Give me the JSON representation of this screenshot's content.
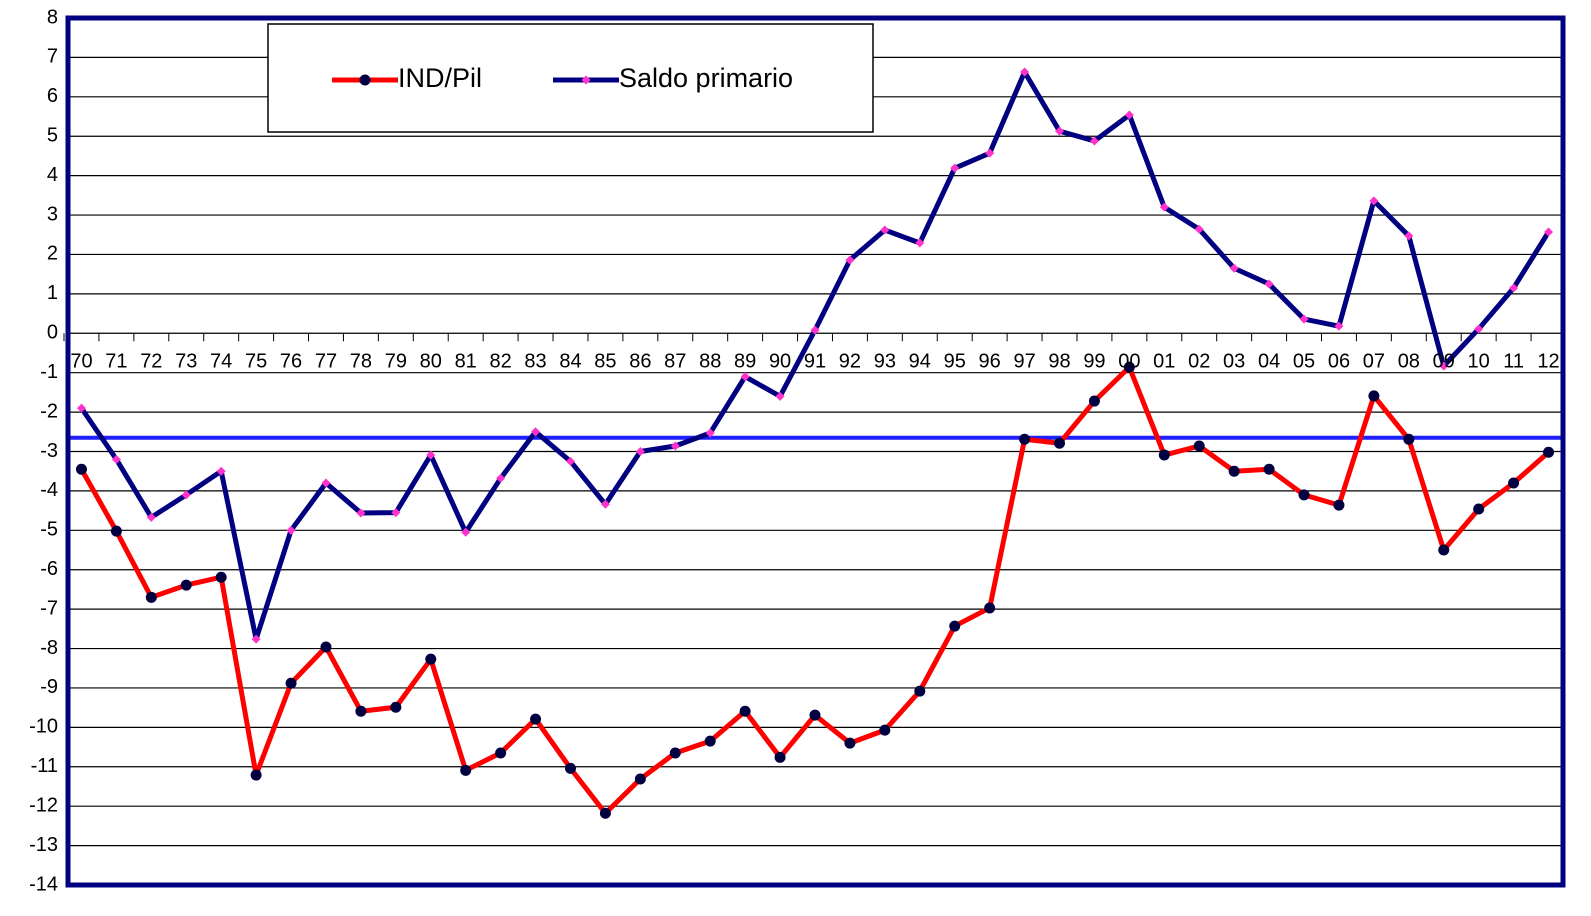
{
  "chart_data": {
    "type": "line",
    "categories": [
      "70",
      "71",
      "72",
      "73",
      "74",
      "75",
      "76",
      "77",
      "78",
      "79",
      "80",
      "81",
      "82",
      "83",
      "84",
      "85",
      "86",
      "87",
      "88",
      "89",
      "90",
      "91",
      "92",
      "93",
      "94",
      "95",
      "96",
      "97",
      "98",
      "99",
      "00",
      "01",
      "02",
      "03",
      "04",
      "05",
      "06",
      "07",
      "08",
      "09",
      "10",
      "11",
      "12"
    ],
    "series": [
      {
        "name": "IND/Pil",
        "color": "#ff0000",
        "marker_color": "#000040",
        "values": [
          -3.45,
          -5.02,
          -6.7,
          -6.39,
          -6.19,
          -11.21,
          -8.88,
          -7.96,
          -9.59,
          -9.49,
          -8.27,
          -11.09,
          -10.65,
          -9.79,
          -11.04,
          -12.18,
          -11.31,
          -10.65,
          -10.35,
          -9.59,
          -10.76,
          -9.69,
          -10.4,
          -10.07,
          -9.08,
          -7.43,
          -6.97,
          -2.69,
          -2.79,
          -1.72,
          -0.86,
          -3.09,
          -2.86,
          -3.5,
          -3.45,
          -4.1,
          -4.36,
          -1.59,
          -2.69,
          -5.5,
          -4.46,
          -3.8,
          -3.02
        ]
      },
      {
        "name": "Saldo primario",
        "color": "#000080",
        "marker_color": "#ff33cc",
        "values": [
          -1.9,
          -3.2,
          -4.67,
          -4.1,
          -3.5,
          -7.76,
          -5.0,
          -3.8,
          -4.56,
          -4.55,
          -3.09,
          -5.05,
          -3.68,
          -2.5,
          -3.25,
          -4.34,
          -3.0,
          -2.86,
          -2.53,
          -1.1,
          -1.6,
          0.08,
          1.86,
          2.62,
          2.29,
          4.19,
          4.57,
          6.63,
          5.13,
          4.88,
          5.54,
          3.2,
          2.64,
          1.65,
          1.25,
          0.36,
          0.18,
          3.36,
          2.47,
          -0.83,
          0.11,
          1.15,
          2.57
        ]
      }
    ],
    "reference_line": {
      "value": -2.65,
      "color": "#1f1fff"
    },
    "ylim": [
      -14,
      8
    ],
    "yticks": [
      -14,
      -13,
      -12,
      -11,
      -10,
      -9,
      -8,
      -7,
      -6,
      -5,
      -4,
      -3,
      -2,
      -1,
      0,
      1,
      2,
      3,
      4,
      5,
      6,
      7,
      8
    ],
    "grid": true
  }
}
